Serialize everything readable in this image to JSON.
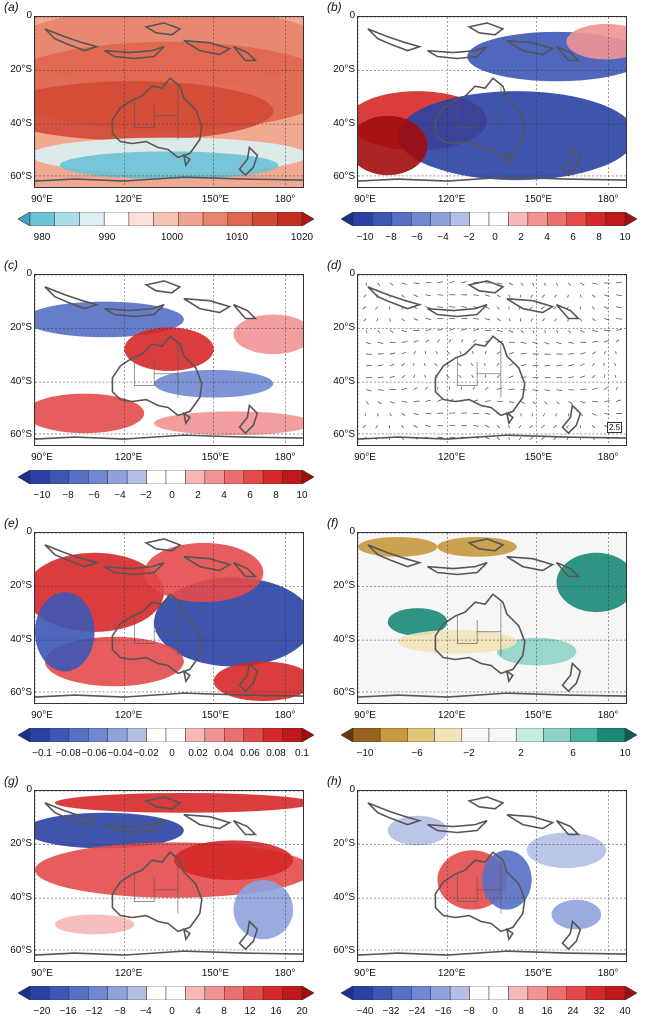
{
  "panels": [
    {
      "id": "a",
      "letter": "(a)",
      "xlabels": [
        "90°E",
        "120°E",
        "150°E",
        "180°"
      ],
      "ylabels": [
        "0",
        "20°S",
        "40°S",
        "60°S"
      ],
      "colorbar": {
        "ticks": [
          "980",
          "990",
          "1000",
          "1010",
          "1020"
        ],
        "colors": [
          "#3fa9c4",
          "#6cc2d6",
          "#a9dde8",
          "#dcf0f4",
          "#ffffff",
          "#fbe0dc",
          "#f6c2b6",
          "#f0a391",
          "#e8846e",
          "#e0664f",
          "#d24935",
          "#c42f21",
          "#b0181a"
        ]
      },
      "field": "slp"
    },
    {
      "id": "b",
      "letter": "(b)",
      "xlabels": [
        "90°E",
        "120°E",
        "150°E",
        "180°"
      ],
      "ylabels": [
        "0",
        "20°S",
        "40°S",
        "60°S"
      ],
      "colorbar": {
        "ticks": [
          "−10",
          "−8",
          "−6",
          "−4",
          "−2",
          "0",
          "2",
          "4",
          "6",
          "8",
          "10"
        ],
        "colors": [
          "#1d2f8c",
          "#2a41a3",
          "#3c56b5",
          "#5570c4",
          "#7088d1",
          "#8fa2dc",
          "#b3bfe6",
          "#ffffff",
          "#ffffff",
          "#f6b7b7",
          "#f19393",
          "#ec6f6f",
          "#e44a4a",
          "#d62828",
          "#c01818",
          "#a20d0d"
        ]
      },
      "field": "b"
    },
    {
      "id": "c",
      "letter": "(c)",
      "xlabels": [
        "90°E",
        "120°E",
        "150°E",
        "180°"
      ],
      "ylabels": [
        "0",
        "20°S",
        "40°S",
        "60°S"
      ],
      "colorbar": {
        "ticks": [
          "−10",
          "−8",
          "−6",
          "−4",
          "−2",
          "0",
          "2",
          "4",
          "6",
          "8",
          "10"
        ],
        "colors": [
          "#1d2f8c",
          "#2a41a3",
          "#3c56b5",
          "#5570c4",
          "#7088d1",
          "#8fa2dc",
          "#b3bfe6",
          "#ffffff",
          "#ffffff",
          "#f6b7b7",
          "#f19393",
          "#ec6f6f",
          "#e44a4a",
          "#d62828",
          "#c01818",
          "#a20d0d"
        ]
      },
      "field": "c"
    },
    {
      "id": "d",
      "letter": "(d)",
      "xlabels": [
        "90°E",
        "120°E",
        "150°E",
        "180°"
      ],
      "ylabels": [
        "0",
        "20°S",
        "40°S",
        "60°S"
      ],
      "colorbar": null,
      "reference": "2.5",
      "field": "vectors"
    },
    {
      "id": "e",
      "letter": "(e)",
      "xlabels": [
        "90°E",
        "120°E",
        "150°E",
        "180°"
      ],
      "ylabels": [
        "0",
        "20°S",
        "40°S",
        "60°S"
      ],
      "colorbar": {
        "ticks": [
          "−0.1",
          "−0.08",
          "−0.06",
          "−0.04",
          "−0.02",
          "0",
          "0.02",
          "0.04",
          "0.06",
          "0.08",
          "0.1"
        ],
        "colors": [
          "#1d2f8c",
          "#2a41a3",
          "#3c56b5",
          "#5570c4",
          "#7088d1",
          "#8fa2dc",
          "#b3bfe6",
          "#ffffff",
          "#ffffff",
          "#f6b7b7",
          "#f19393",
          "#ec6f6f",
          "#e44a4a",
          "#d62828",
          "#c01818",
          "#a20d0d"
        ]
      },
      "field": "e"
    },
    {
      "id": "f",
      "letter": "(f)",
      "xlabels": [
        "90°E",
        "120°E",
        "150°E",
        "180°"
      ],
      "ylabels": [
        "0",
        "20°S",
        "40°S",
        "60°S"
      ],
      "colorbar": {
        "ticks": [
          "−10",
          "−6",
          "−2",
          "2",
          "6",
          "10"
        ],
        "colors": [
          "#6b3a12",
          "#9a6220",
          "#c79a3e",
          "#e2c678",
          "#f2e4b8",
          "#f6f6f6",
          "#f6f6f6",
          "#c6ebe5",
          "#8fd3c7",
          "#49b3a1",
          "#1b8a79",
          "#0b5c4f"
        ]
      },
      "field": "f"
    },
    {
      "id": "g",
      "letter": "(g)",
      "xlabels": [
        "90°E",
        "120°E",
        "150°E",
        "180°"
      ],
      "ylabels": [
        "0",
        "20°S",
        "40°S",
        "60°S"
      ],
      "colorbar": {
        "ticks": [
          "−20",
          "−16",
          "−12",
          "−8",
          "−4",
          "0",
          "4",
          "8",
          "12",
          "16",
          "20"
        ],
        "colors": [
          "#1d2f8c",
          "#2a41a3",
          "#3c56b5",
          "#5570c4",
          "#7088d1",
          "#8fa2dc",
          "#b3bfe6",
          "#ffffff",
          "#ffffff",
          "#f6b7b7",
          "#f19393",
          "#ec6f6f",
          "#e44a4a",
          "#d62828",
          "#c01818",
          "#a20d0d"
        ]
      },
      "field": "g"
    },
    {
      "id": "h",
      "letter": "(h)",
      "xlabels": [
        "90°E",
        "120°E",
        "150°E",
        "180°"
      ],
      "ylabels": [
        "0",
        "20°S",
        "40°S",
        "60°S"
      ],
      "colorbar": {
        "ticks": [
          "−40",
          "−32",
          "−24",
          "−16",
          "−8",
          "0",
          "8",
          "16",
          "24",
          "32",
          "40"
        ],
        "colors": [
          "#1d2f8c",
          "#2a41a3",
          "#3c56b5",
          "#5570c4",
          "#7088d1",
          "#8fa2dc",
          "#b3bfe6",
          "#ffffff",
          "#ffffff",
          "#f6b7b7",
          "#f19393",
          "#ec6f6f",
          "#e44a4a",
          "#d62828",
          "#c01818",
          "#a20d0d"
        ]
      },
      "field": "h"
    }
  ]
}
